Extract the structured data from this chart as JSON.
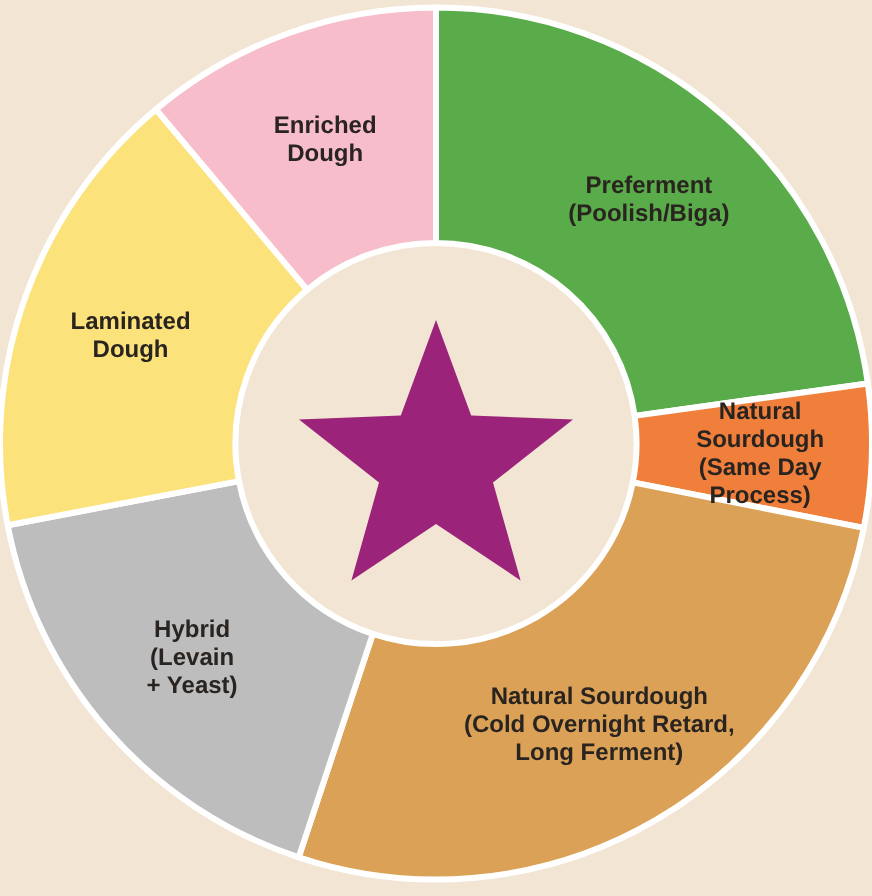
{
  "chart_data": {
    "type": "donut",
    "categories": [
      "Preferment\n(Poolish/Biga)",
      "Natural\nSourdough\n(Same Day\nProcess)",
      "Natural Sourdough\n(Cold Overnight Retard,\nLong Ferment)",
      "Hybrid\n(Levain\n+ Yeast)",
      "Laminated\nDough",
      "Enriched\nDough"
    ],
    "values": [
      22.8,
      5.3,
      27,
      16.9,
      16.9,
      11.1
    ],
    "colors": [
      "#5aab4a",
      "#ef7f3a",
      "#dba257",
      "#bdbdbd",
      "#fbe27b",
      "#f8bdcb"
    ]
  }
}
